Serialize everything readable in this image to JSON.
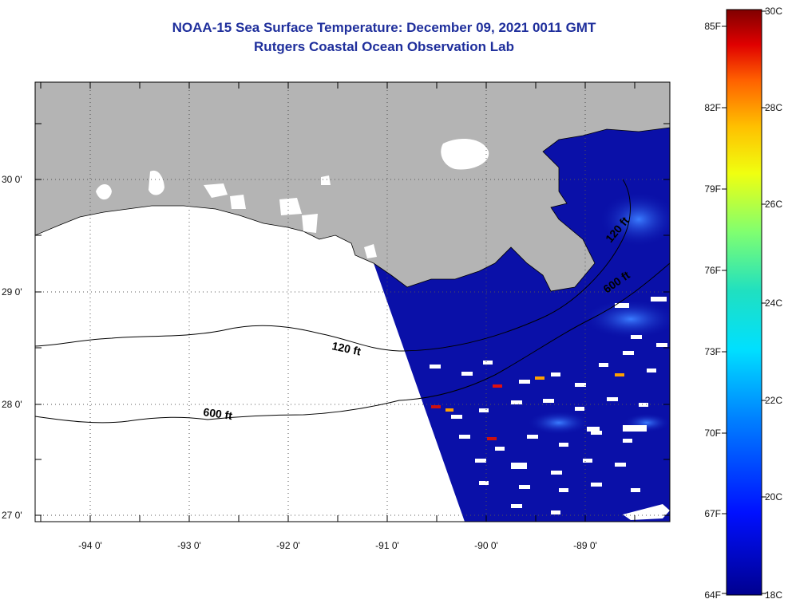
{
  "title": {
    "line1": "NOAA-15 Sea Surface Temperature:  December 09, 2021 0011 GMT",
    "line2": "Rutgers Coastal Ocean Observation Lab"
  },
  "axes": {
    "lat_labels": [
      "30 0'",
      "29 0'",
      "28 0'",
      "27 0'"
    ],
    "lon_labels": [
      "-94 0'",
      "-93 0'",
      "-92 0'",
      "-91 0'",
      "-90 0'",
      "-89 0'"
    ]
  },
  "contours": {
    "c120_east": "120 ft",
    "c600_east": "600 ft",
    "c120_west": "120 ft",
    "c600_west": "600 ft"
  },
  "colorbar": {
    "f_labels": [
      "85F",
      "82F",
      "79F",
      "76F",
      "73F",
      "70F",
      "67F",
      "64F"
    ],
    "c_labels": [
      "30C",
      "28C",
      "26C",
      "24C",
      "22C",
      "20C",
      "18C"
    ]
  },
  "colors": {
    "title": "#1f2f9c",
    "land": "#b4b4b4",
    "ocean_sst": "#0a10a8",
    "no_data": "#ffffff"
  }
}
